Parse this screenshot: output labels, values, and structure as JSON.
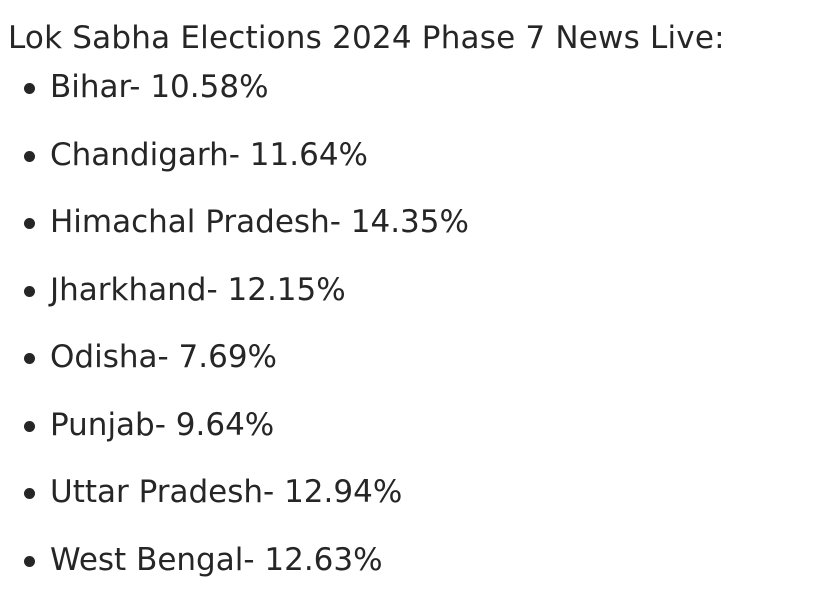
{
  "title": "Lok Sabha Elections 2024 Phase 7 News Live:",
  "items": [
    "Bihar- 10.58%",
    "Chandigarh- 11.64%",
    "Himachal Pradesh- 14.35%",
    "Jharkhand- 12.15%",
    "Odisha- 7.69%",
    "Punjab- 9.64%",
    "Uttar Pradesh- 12.94%",
    "West Bengal- 12.63%"
  ]
}
